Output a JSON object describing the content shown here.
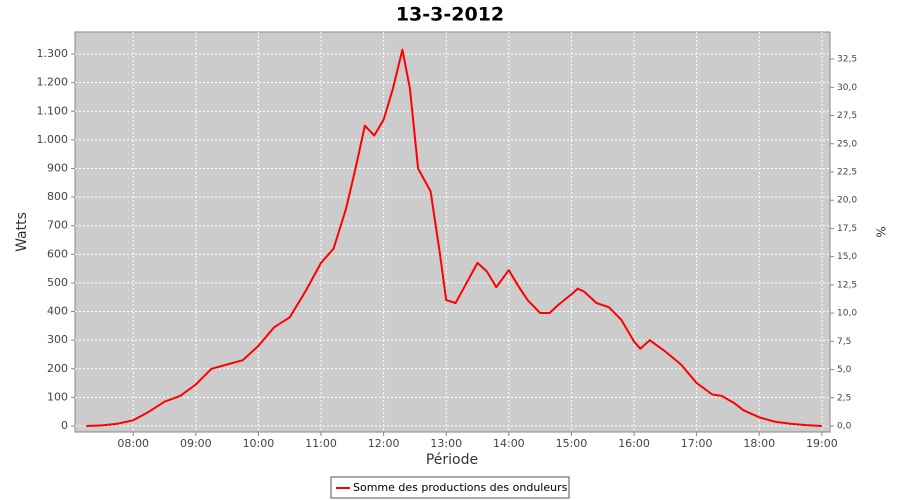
{
  "chart_data": {
    "type": "line",
    "title": "13-3-2012",
    "x_label": "Période",
    "y_label": "Watts",
    "y2_label": "%",
    "x": [
      7.25,
      7.5,
      7.75,
      8.0,
      8.25,
      8.5,
      8.75,
      9.0,
      9.25,
      9.5,
      9.75,
      10.0,
      10.25,
      10.5,
      10.75,
      11.0,
      11.2,
      11.4,
      11.55,
      11.7,
      11.85,
      12.0,
      12.15,
      12.3,
      12.42,
      12.55,
      12.75,
      12.9,
      13.0,
      13.15,
      13.3,
      13.5,
      13.65,
      13.8,
      14.0,
      14.15,
      14.3,
      14.5,
      14.65,
      14.8,
      15.0,
      15.1,
      15.2,
      15.4,
      15.6,
      15.8,
      16.0,
      16.1,
      16.25,
      16.5,
      16.75,
      17.0,
      17.25,
      17.4,
      17.6,
      17.75,
      18.0,
      18.25,
      18.5,
      18.75,
      19.0
    ],
    "series": [
      {
        "name": "Somme des productions des onduleurs",
        "color": "#ff0000",
        "values": [
          0,
          2,
          8,
          20,
          50,
          85,
          105,
          145,
          200,
          215,
          230,
          280,
          345,
          380,
          470,
          570,
          620,
          760,
          900,
          1050,
          1015,
          1070,
          1180,
          1315,
          1180,
          900,
          820,
          600,
          440,
          430,
          490,
          570,
          540,
          485,
          545,
          490,
          440,
          395,
          395,
          425,
          460,
          480,
          470,
          430,
          415,
          370,
          295,
          270,
          300,
          260,
          215,
          150,
          110,
          105,
          80,
          55,
          30,
          15,
          8,
          3,
          0
        ]
      }
    ],
    "xlim": [
      7.07,
      19.13
    ],
    "xticks": [
      {
        "value": 8,
        "label": "08:00"
      },
      {
        "value": 9,
        "label": "09:00"
      },
      {
        "value": 10,
        "label": "10:00"
      },
      {
        "value": 11,
        "label": "11:00"
      },
      {
        "value": 12,
        "label": "12:00"
      },
      {
        "value": 13,
        "label": "13:00"
      },
      {
        "value": 14,
        "label": "14:00"
      },
      {
        "value": 15,
        "label": "15:00"
      },
      {
        "value": 16,
        "label": "16:00"
      },
      {
        "value": 17,
        "label": "17:00"
      },
      {
        "value": 18,
        "label": "18:00"
      },
      {
        "value": 19,
        "label": "19:00"
      }
    ],
    "ylim": [
      -21,
      1377
    ],
    "yticks": [
      0,
      100,
      200,
      300,
      400,
      500,
      600,
      700,
      800,
      900,
      {
        "value": 1000,
        "label": "1.000"
      },
      {
        "value": 1100,
        "label": "1.100"
      },
      {
        "value": 1200,
        "label": "1.200"
      },
      {
        "value": 1300,
        "label": "1.300"
      }
    ],
    "y2lim": [
      -0.53,
      34.9
    ],
    "y2ticks": [
      {
        "value": 0,
        "label": "0,0"
      },
      {
        "value": 2.5,
        "label": "2,5"
      },
      {
        "value": 5,
        "label": "5,0"
      },
      {
        "value": 7.5,
        "label": "7,5"
      },
      {
        "value": 10,
        "label": "10,0"
      },
      {
        "value": 12.5,
        "label": "12,5"
      },
      {
        "value": 15,
        "label": "15,0"
      },
      {
        "value": 17.5,
        "label": "17,5"
      },
      {
        "value": 20,
        "label": "20,0"
      },
      {
        "value": 22.5,
        "label": "22,5"
      },
      {
        "value": 25,
        "label": "25,0"
      },
      {
        "value": 27.5,
        "label": "27,5"
      },
      {
        "value": 30,
        "label": "30,0"
      },
      {
        "value": 32.5,
        "label": "32,5"
      }
    ],
    "grid": true,
    "legend": "bottom"
  }
}
